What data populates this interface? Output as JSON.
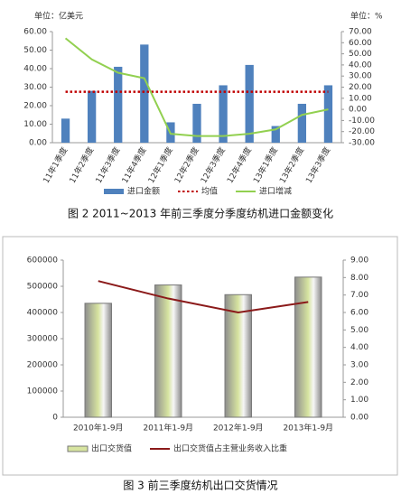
{
  "chart_data": [
    {
      "type": "combo",
      "unit_label": "单位：亿美元",
      "unit_label_y2": "单位：%",
      "caption": "图 2 2011~2013 年前三季度分季度纺机进口金额变化",
      "categories": [
        "11年1季度",
        "11年2季度",
        "11年3季度",
        "11年4季度",
        "12年1季度",
        "12年2季度",
        "12年3季度",
        "12年4季度",
        "13年1季度",
        "13年2季度",
        "13年3季度"
      ],
      "series": [
        {
          "name": "进口金额",
          "type": "bar",
          "color": "#4f81bd",
          "values": [
            13,
            28,
            41,
            53,
            11,
            21,
            31,
            42,
            9,
            21,
            31
          ]
        },
        {
          "name": "均值",
          "type": "line",
          "style": "dotted",
          "color": "#c00000",
          "values": [
            27.5,
            27.5,
            27.5,
            27.5,
            27.5,
            27.5,
            27.5,
            27.5,
            27.5,
            27.5,
            27.5
          ]
        },
        {
          "name": "进口增减",
          "type": "line",
          "axis": "y2",
          "color": "#92d050",
          "values": [
            64,
            45,
            33,
            28,
            -22,
            -24,
            -24,
            -22,
            -18,
            -5,
            0
          ]
        }
      ],
      "ylim": [
        0,
        60
      ],
      "yticks": [
        {
          "value": 0,
          "label": "0.00"
        },
        {
          "value": 10,
          "label": "10.00"
        },
        {
          "value": 20,
          "label": "20.00"
        },
        {
          "value": 30,
          "label": "30.00"
        },
        {
          "value": 40,
          "label": "40.00"
        },
        {
          "value": 50,
          "label": "50.00"
        },
        {
          "value": 60,
          "label": "60.00"
        }
      ],
      "y2lim": [
        -30,
        70
      ],
      "y2ticks": [
        {
          "value": -30,
          "label": "-30.00"
        },
        {
          "value": -20,
          "label": "-20.00"
        },
        {
          "value": -10,
          "label": "-10.00"
        },
        {
          "value": 0,
          "label": "0.00"
        },
        {
          "value": 10,
          "label": "10.00"
        },
        {
          "value": 20,
          "label": "20.00"
        },
        {
          "value": 30,
          "label": "30.00"
        },
        {
          "value": 40,
          "label": "40.00"
        },
        {
          "value": 50,
          "label": "50.00"
        },
        {
          "value": 60,
          "label": "60.00"
        },
        {
          "value": 70,
          "label": "70.00"
        }
      ],
      "grid": false
    },
    {
      "type": "combo",
      "caption": "图 3 前三季度纺机出口交货情况",
      "categories": [
        "2010年1-9月",
        "2011年1-9月",
        "2012年1-9月",
        "2013年1-9月"
      ],
      "series": [
        {
          "name": "出口交货值",
          "type": "bar",
          "color": "#d7e4a0",
          "values": [
            435000,
            505000,
            468000,
            535000
          ]
        },
        {
          "name": "出口交货值占主营业务收入比重",
          "type": "line",
          "axis": "y2",
          "color": "#8b1a1a",
          "values": [
            7.8,
            6.8,
            6.0,
            6.6
          ]
        }
      ],
      "ylim": [
        0,
        600000
      ],
      "yticks": [
        0,
        100000,
        200000,
        300000,
        400000,
        500000,
        600000
      ],
      "y2lim": [
        0,
        9
      ],
      "y2ticks": [
        {
          "value": 0,
          "label": "0.00"
        },
        {
          "value": 1,
          "label": "1.00"
        },
        {
          "value": 2,
          "label": "2.00"
        },
        {
          "value": 3,
          "label": "3.00"
        },
        {
          "value": 4,
          "label": "4.00"
        },
        {
          "value": 5,
          "label": "5.00"
        },
        {
          "value": 6,
          "label": "6.00"
        },
        {
          "value": 7,
          "label": "7.00"
        },
        {
          "value": 8,
          "label": "8.00"
        },
        {
          "value": 9,
          "label": "9.00"
        }
      ],
      "grid": false
    }
  ]
}
